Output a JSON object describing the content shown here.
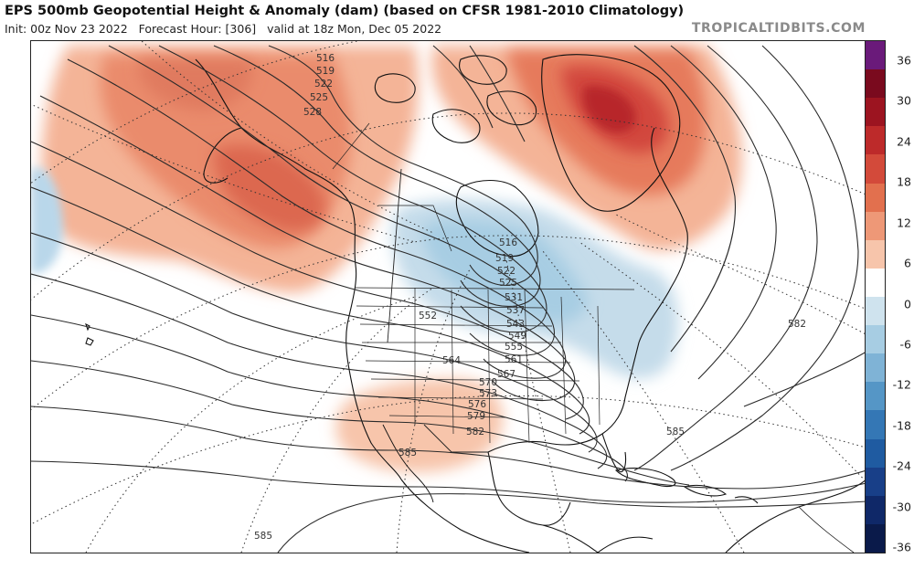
{
  "header": {
    "title": "EPS 500mb Geopotential Height & Anomaly (dam) (based on CFSR 1981-2010 Climatology)",
    "init": "Init: 00z Nov 23 2022",
    "forecast_hour": "Forecast Hour: [306]",
    "valid": "valid at 18z Mon, Dec 05 2022",
    "source": "TROPICALTIDBITS.COM"
  },
  "colorbar": {
    "labels": [
      "36",
      "30",
      "24",
      "18",
      "12",
      "6",
      "0",
      "-6",
      "-12",
      "-18",
      "-24",
      "-30",
      "-36"
    ],
    "colors": [
      "#6a1a7a",
      "#7a0a1e",
      "#9c1420",
      "#bd2a2a",
      "#d34a3a",
      "#e2704e",
      "#ee9877",
      "#f7c5ab",
      "#ffffff",
      "#cfe3ee",
      "#a7cde3",
      "#7fb3d6",
      "#5596c6",
      "#3477b5",
      "#1f5ba1",
      "#183f88",
      "#0f2868",
      "#0a1a4a"
    ]
  },
  "contour_labels": [
    "516",
    "519",
    "522",
    "525",
    "528",
    "516",
    "519",
    "522",
    "525",
    "531",
    "537",
    "543",
    "549",
    "552",
    "555",
    "561",
    "564",
    "567",
    "570",
    "573",
    "576",
    "579",
    "582",
    "582",
    "585",
    "585",
    "585"
  ],
  "anomaly_centers": [
    {
      "region": "Gulf of Alaska / Pacific NW ridge",
      "sign": "positive",
      "peak": 18
    },
    {
      "region": "Greenland ridge",
      "sign": "positive",
      "peak": 30
    },
    {
      "region": "Hudson Bay / Great Lakes trough",
      "sign": "negative",
      "peak": -12
    },
    {
      "region": "Southwest US / Northern Mexico",
      "sign": "positive",
      "peak": 6
    },
    {
      "region": "Central Pacific",
      "sign": "negative",
      "peak": -6
    }
  ]
}
